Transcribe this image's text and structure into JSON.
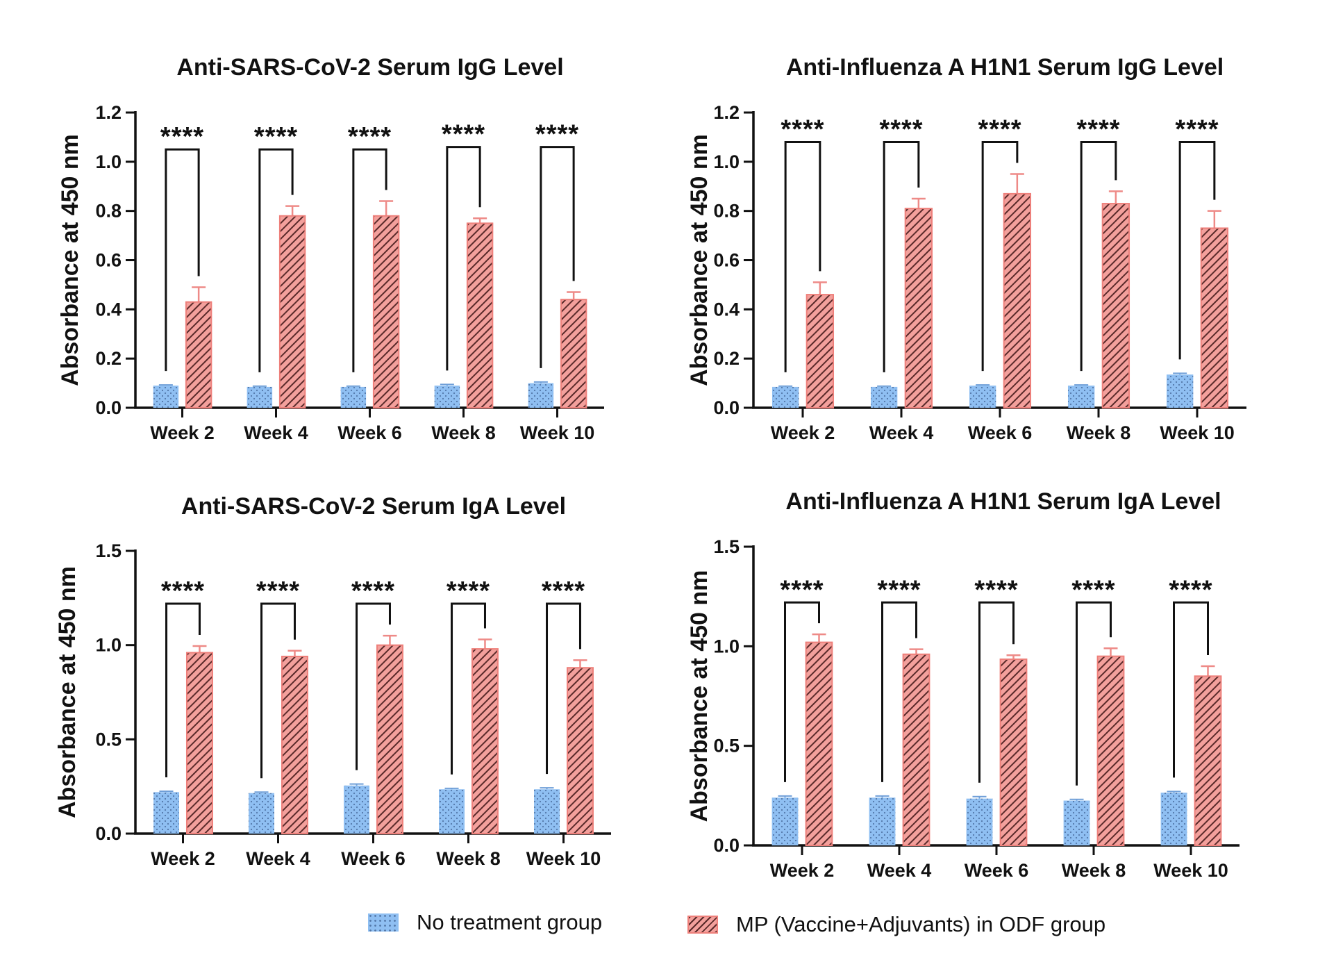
{
  "legend": {
    "items": [
      {
        "label": "No treatment group",
        "color": "#8fbff2"
      },
      {
        "label": "MP (Vaccine+Adjuvants) in ODF group",
        "color": "#f3a09c"
      }
    ]
  },
  "colors": {
    "control_fill": "#8fbff2",
    "control_dot": "#5277a8",
    "treated_fill": "#f3a09c",
    "treated_edge": "#ee807b",
    "hatch": "#5a2a2a",
    "error_red": "#ee8a87",
    "error_blue": "#6f9fd8"
  },
  "chart_data": [
    {
      "type": "bar",
      "title": "Anti-SARS-CoV-2 Serum IgG Level",
      "ylabel": "Absorbance at 450 nm",
      "categories": [
        "Week 2",
        "Week 4",
        "Week 6",
        "Week 8",
        "Week 10"
      ],
      "ylim": [
        0,
        1.2
      ],
      "yticks": [
        0.0,
        0.2,
        0.4,
        0.6,
        0.8,
        1.0,
        1.2
      ],
      "ytick_labels": [
        "0.0",
        "0.2",
        "0.4",
        "0.6",
        "0.8",
        "1.0",
        "1.2"
      ],
      "series": [
        {
          "name": "No treatment group",
          "values": [
            0.09,
            0.085,
            0.085,
            0.09,
            0.1
          ],
          "errors": [
            0.003,
            0.003,
            0.003,
            0.005,
            0.005
          ]
        },
        {
          "name": "MP (Vaccine+Adjuvants) in ODF group",
          "values": [
            0.43,
            0.78,
            0.78,
            0.75,
            0.44
          ],
          "errors": [
            0.06,
            0.04,
            0.06,
            0.02,
            0.03
          ]
        }
      ],
      "significance": [
        "****",
        "****",
        "****",
        "****",
        "****"
      ],
      "bracket_tops": [
        1.05,
        1.05,
        1.05,
        1.06,
        1.06
      ]
    },
    {
      "type": "bar",
      "title": "Anti-Influenza A H1N1 Serum IgG Level",
      "ylabel": "Absorbance at 450 nm",
      "categories": [
        "Week 2",
        "Week 4",
        "Week 6",
        "Week 8",
        "Week 10"
      ],
      "ylim": [
        0,
        1.2
      ],
      "yticks": [
        0.0,
        0.2,
        0.4,
        0.6,
        0.8,
        1.0,
        1.2
      ],
      "ytick_labels": [
        "0.0",
        "0.2",
        "0.4",
        "0.6",
        "0.8",
        "1.0",
        "1.2"
      ],
      "series": [
        {
          "name": "No treatment group",
          "values": [
            0.085,
            0.085,
            0.09,
            0.09,
            0.135
          ],
          "errors": [
            0.003,
            0.003,
            0.003,
            0.003,
            0.005
          ]
        },
        {
          "name": "MP (Vaccine+Adjuvants) in ODF group",
          "values": [
            0.46,
            0.81,
            0.87,
            0.83,
            0.73
          ],
          "errors": [
            0.05,
            0.04,
            0.08,
            0.05,
            0.07
          ]
        }
      ],
      "significance": [
        "****",
        "****",
        "****",
        "****",
        "****"
      ],
      "bracket_tops": [
        1.08,
        1.08,
        1.08,
        1.08,
        1.08
      ]
    },
    {
      "type": "bar",
      "title": "Anti-SARS-CoV-2 Serum IgA Level",
      "ylabel": "Absorbance at 450 nm",
      "categories": [
        "Week 2",
        "Week 4",
        "Week 6",
        "Week 8",
        "Week 10"
      ],
      "ylim": [
        0,
        1.5
      ],
      "yticks": [
        0.0,
        0.5,
        1.0,
        1.5
      ],
      "ytick_labels": [
        "0.0",
        "0.5",
        "1.0",
        "1.5"
      ],
      "series": [
        {
          "name": "No treatment group",
          "values": [
            0.22,
            0.215,
            0.255,
            0.235,
            0.235
          ],
          "errors": [
            0.005,
            0.005,
            0.008,
            0.005,
            0.008
          ]
        },
        {
          "name": "MP (Vaccine+Adjuvants) in ODF group",
          "values": [
            0.96,
            0.94,
            1.0,
            0.98,
            0.88
          ],
          "errors": [
            0.035,
            0.03,
            0.05,
            0.05,
            0.04
          ]
        }
      ],
      "significance": [
        "****",
        "****",
        "****",
        "****",
        "****"
      ],
      "bracket_tops": [
        1.22,
        1.22,
        1.22,
        1.22,
        1.22
      ]
    },
    {
      "type": "bar",
      "title": "Anti-Influenza A H1N1 Serum IgA Level",
      "ylabel": "Absorbance at 450 nm",
      "categories": [
        "Week 2",
        "Week 4",
        "Week 6",
        "Week 8",
        "Week 10"
      ],
      "ylim": [
        0,
        1.5
      ],
      "yticks": [
        0.0,
        0.5,
        1.0,
        1.5
      ],
      "ytick_labels": [
        "0.0",
        "0.5",
        "1.0",
        "1.5"
      ],
      "series": [
        {
          "name": "No treatment group",
          "values": [
            0.24,
            0.24,
            0.235,
            0.225,
            0.265
          ],
          "errors": [
            0.008,
            0.008,
            0.01,
            0.006,
            0.006
          ]
        },
        {
          "name": "MP (Vaccine+Adjuvants) in ODF group",
          "values": [
            1.02,
            0.96,
            0.935,
            0.95,
            0.85
          ],
          "errors": [
            0.04,
            0.025,
            0.02,
            0.04,
            0.05
          ]
        }
      ],
      "significance": [
        "****",
        "****",
        "****",
        "****",
        "****"
      ],
      "bracket_tops": [
        1.22,
        1.22,
        1.22,
        1.22,
        1.22
      ]
    }
  ]
}
